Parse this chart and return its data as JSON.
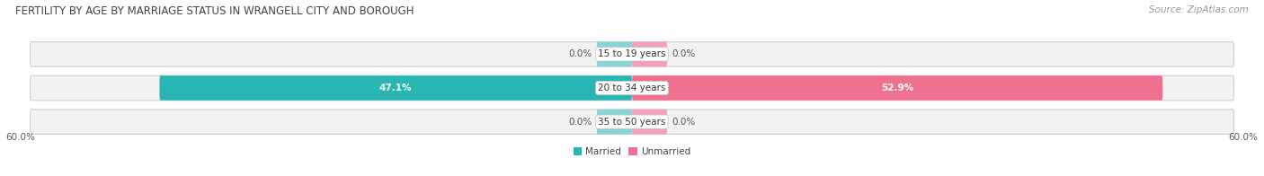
{
  "title": "FERTILITY BY AGE BY MARRIAGE STATUS IN WRANGELL CITY AND BOROUGH",
  "source": "Source: ZipAtlas.com",
  "categories": [
    "15 to 19 years",
    "20 to 34 years",
    "35 to 50 years"
  ],
  "married_values": [
    0.0,
    47.1,
    0.0
  ],
  "unmarried_values": [
    0.0,
    52.9,
    0.0
  ],
  "married_color": "#2ab5b5",
  "unmarried_color": "#f07090",
  "married_zero_color": "#85d5d5",
  "unmarried_zero_color": "#f5a0b8",
  "bar_bg_color": "#f0f0f0",
  "max_value": 60.0,
  "x_tick_left": "60.0%",
  "x_tick_right": "60.0%",
  "legend_married": "Married",
  "legend_unmarried": "Unmarried",
  "title_fontsize": 8.5,
  "source_fontsize": 7.5,
  "label_fontsize": 7.5,
  "category_fontsize": 7.5,
  "background_color": "#ffffff",
  "zero_bar_width": 3.5
}
